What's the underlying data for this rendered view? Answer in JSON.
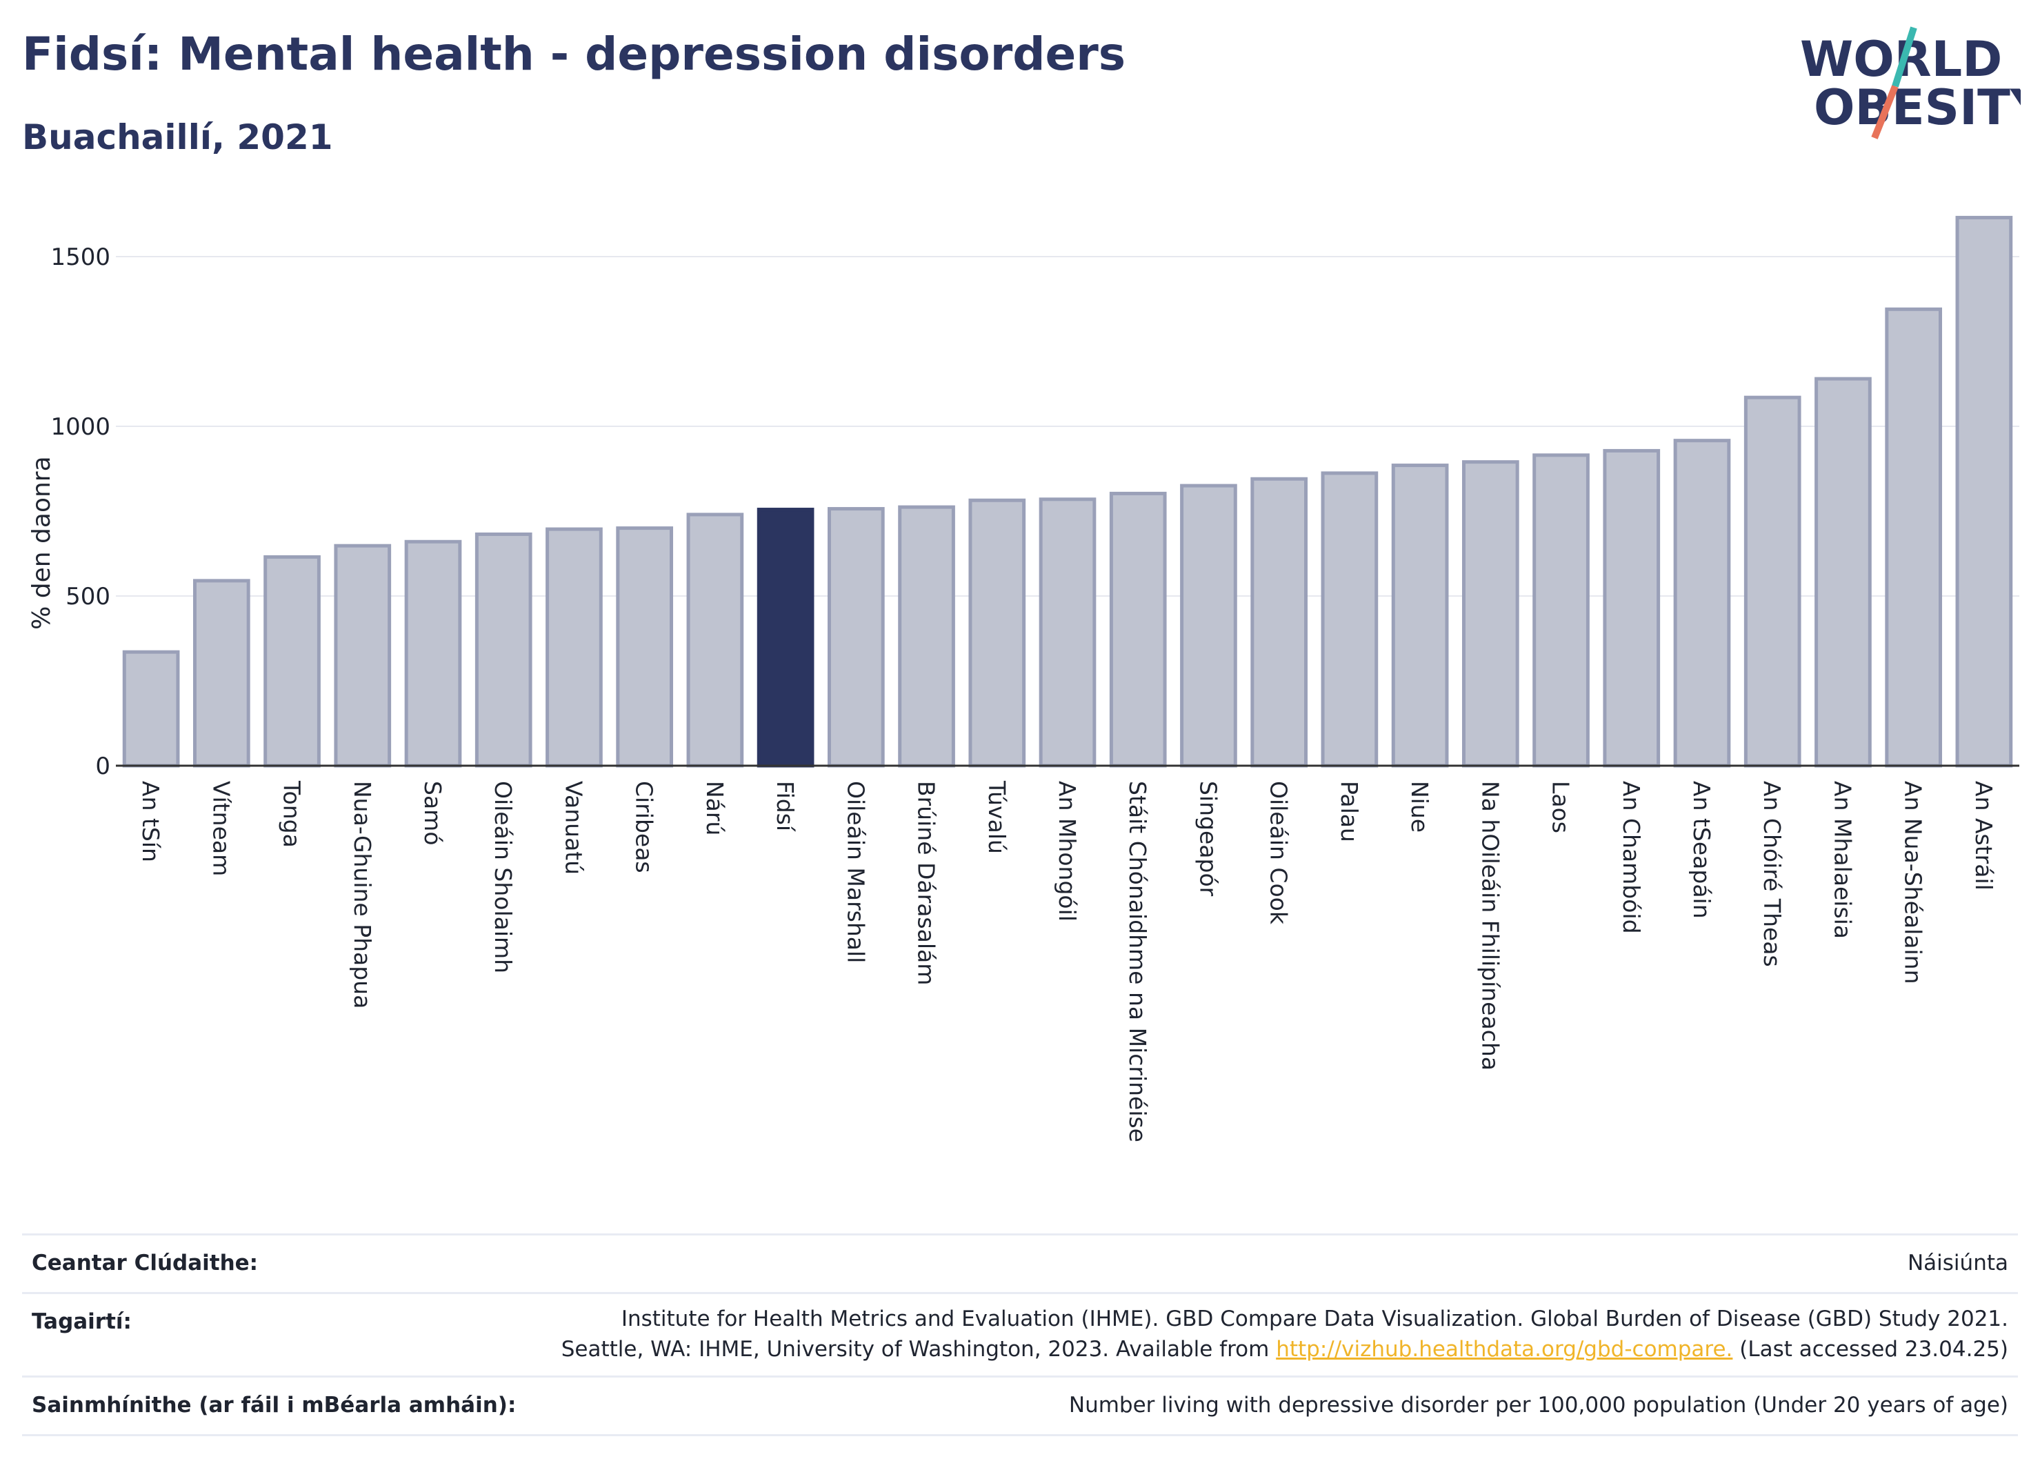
{
  "title": "Fidsí: Mental health - depression disorders",
  "subtitle": "Buachaillí, 2021",
  "logo": {
    "line1": "WORLD",
    "line2": "OBESITY"
  },
  "colors": {
    "bar": "#bfc3d0",
    "bar_stroke": "#9aa0b8",
    "highlight": "#2b3560",
    "title": "#2b3560",
    "link": "#f0b429"
  },
  "chart_data": {
    "type": "bar",
    "ylabel": "% den daonra",
    "ylim": [
      0,
      1650
    ],
    "yticks": [
      0,
      500,
      1000,
      1500
    ],
    "grid": true,
    "highlight": "Fidsí",
    "categories": [
      "An tSín",
      "Vítneam",
      "Tonga",
      "Nua-Ghuine Phapua",
      "Samó",
      "Oileáin Sholaimh",
      "Vanuatú",
      "Ciribeas",
      "Nárú",
      "Fidsí",
      "Oileáin Marshall",
      "Brúiné Dárasalám",
      "Túvalú",
      "An Mhongóil",
      "Stáit Chónaidhme na Micrinéise",
      "Singeapór",
      "Oileáin Cook",
      "Palau",
      "Niue",
      "Na hOileáin Fhilipíneacha",
      "Laos",
      "An Chambóid",
      "An tSeapáin",
      "An Chóiré Theas",
      "An Mhalaeisia",
      "An Nua-Shéalainn",
      "An Astráil"
    ],
    "values": [
      335,
      545,
      615,
      648,
      660,
      682,
      697,
      700,
      740,
      755,
      757,
      762,
      782,
      785,
      802,
      825,
      845,
      862,
      885,
      895,
      915,
      928,
      958,
      1085,
      1140,
      1345,
      1615
    ]
  },
  "footer": {
    "rows": [
      {
        "label": "Ceantar Clúdaithe:",
        "lines": [
          "Náisiúnta"
        ]
      },
      {
        "label": "Tagairtí:",
        "lines": [
          "Institute for Health Metrics and Evaluation (IHME). GBD Compare Data Visualization. Global Burden of Disease (GBD) Study 2021.",
          "Seattle, WA: IHME, University of Washington, 2023. Available from"
        ],
        "link": "http://vizhub.healthdata.org/gbd-compare.",
        "after_link": " (Last accessed 23.04.25)"
      },
      {
        "label": "Sainmhínithe (ar fáil i mBéarla amháin):",
        "lines": [
          "Number living with depressive disorder per 100,000 population (Under 20 years of age)"
        ]
      }
    ]
  }
}
